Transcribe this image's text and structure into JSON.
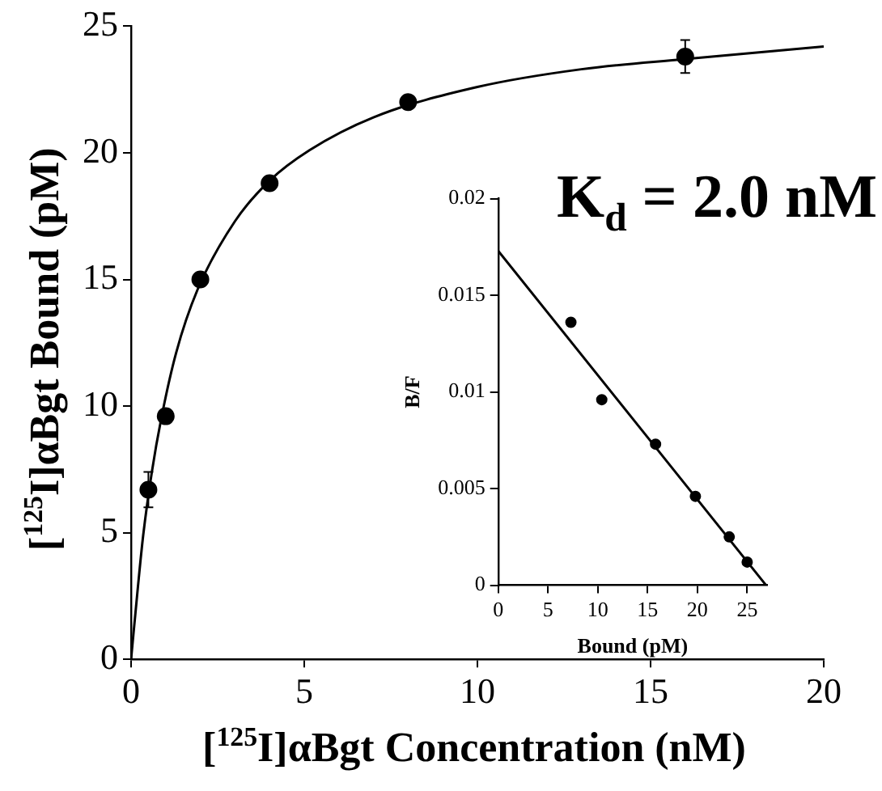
{
  "chart_data": [
    {
      "type": "scatter",
      "xlabel": "[$^{125}$I]αBgt Concentration (nM)",
      "ylabel": "[$^{125}$I]αBgt Bound (pM)",
      "annotations": [
        "K$_{d}$ = 2.0 nM"
      ],
      "xlim": [
        0,
        20
      ],
      "ylim": [
        0,
        25
      ],
      "xticks": [
        0,
        5,
        10,
        15,
        20
      ],
      "yticks": [
        0,
        5,
        10,
        15,
        20,
        25
      ],
      "grid": false,
      "legend": false,
      "series": [
        {
          "type": "scatter",
          "color": "#000000",
          "marker": "circle",
          "x": [
            0.5,
            1,
            2,
            4,
            8,
            16
          ],
          "values": [
            6.7,
            9.6,
            15,
            18.8,
            22,
            23.8
          ],
          "errors": [
            0.7,
            null,
            null,
            null,
            null,
            0.65
          ]
        },
        {
          "type": "line",
          "color": "#000000",
          "marker": "none",
          "x": [
            0,
            0.2,
            0.35,
            0.6,
            0.87,
            1.3,
            1.92,
            3,
            4,
            5.15,
            7,
            10,
            13,
            16,
            20
          ],
          "values": [
            0,
            2.9,
            4.9,
            7.4,
            9.5,
            12.1,
            14.6,
            17.3,
            18.9,
            20.1,
            21.4,
            22.6,
            23.3,
            23.7,
            24.2
          ]
        }
      ]
    },
    {
      "type": "scatter",
      "xlabel": "Bound (pM)",
      "ylabel": "B/F",
      "xlim": [
        0,
        27
      ],
      "ylim": [
        0,
        0.02
      ],
      "xticks": [
        0,
        5,
        10,
        15,
        20,
        25
      ],
      "yticks": [
        0,
        0.005,
        0.01,
        0.015,
        0.02
      ],
      "grid": false,
      "legend": false,
      "series": [
        {
          "type": "scatter",
          "color": "#000000",
          "marker": "circle",
          "x": [
            7.3,
            10.4,
            15.8,
            19.8,
            23.2,
            25.0
          ],
          "values": [
            0.0136,
            0.0096,
            0.0073,
            0.0046,
            0.0025,
            0.0012
          ]
        },
        {
          "type": "line",
          "color": "#000000",
          "marker": "none",
          "x": [
            0,
            26.9
          ],
          "values": [
            0.0173,
            0
          ]
        }
      ]
    }
  ]
}
